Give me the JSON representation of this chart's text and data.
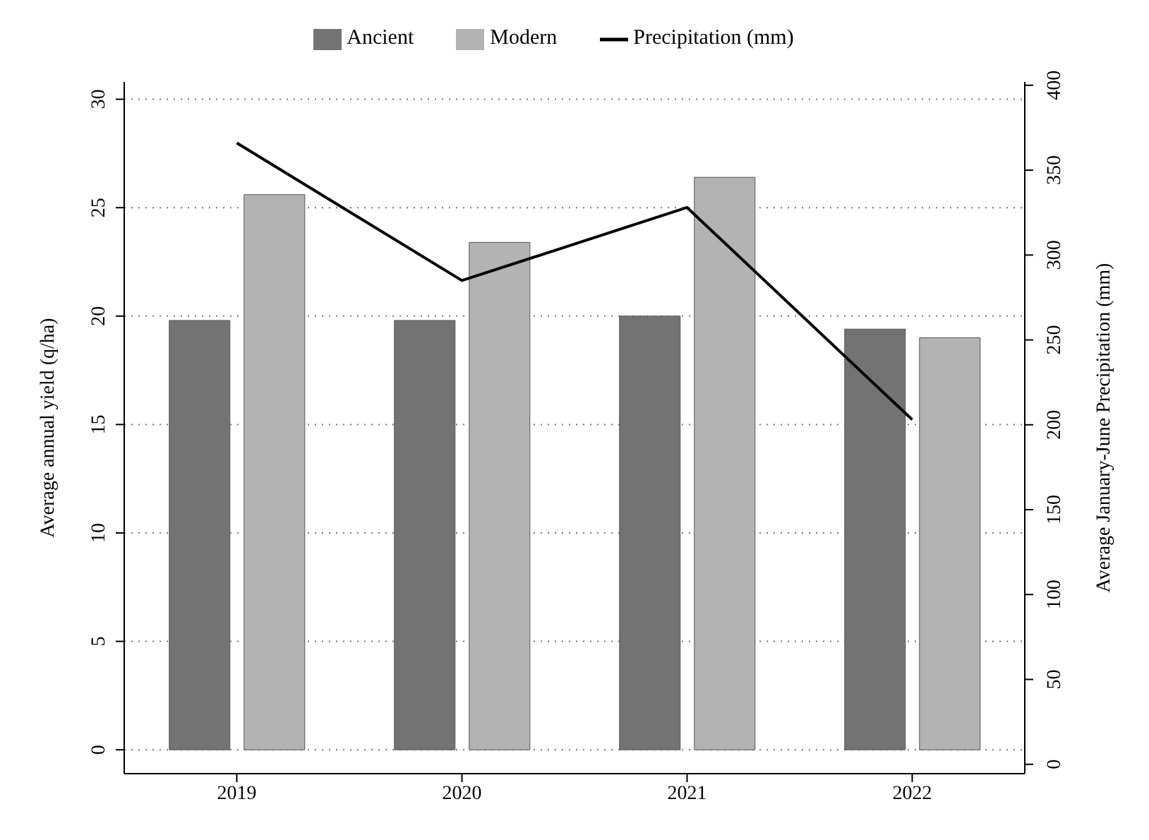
{
  "chart_data": {
    "type": "bar",
    "categories": [
      "2019",
      "2020",
      "2021",
      "2022"
    ],
    "series": [
      {
        "name": "Ancient",
        "color": "#737373",
        "values": [
          19.8,
          19.8,
          20.0,
          19.4
        ]
      },
      {
        "name": "Modern",
        "color": "#b3b3b3",
        "values": [
          25.6,
          23.4,
          26.4,
          19.0
        ]
      },
      {
        "name": "Precipitation (mm)",
        "type": "line",
        "axis": "y2",
        "color": "#000000",
        "values": [
          366,
          285,
          328,
          203
        ]
      }
    ],
    "ylabel": "Average annual yield (q/ha)",
    "y2label": "Average January-June Precipitation (mm)",
    "ylim": [
      -1.1,
      30.8
    ],
    "yticks": [
      0,
      5,
      10,
      15,
      20,
      25,
      30
    ],
    "y2lim": [
      -5.5,
      402
    ],
    "y2ticks": [
      0,
      50,
      100,
      150,
      200,
      250,
      300,
      350,
      400
    ],
    "grid": "y",
    "legend": "top",
    "marker": "none"
  }
}
